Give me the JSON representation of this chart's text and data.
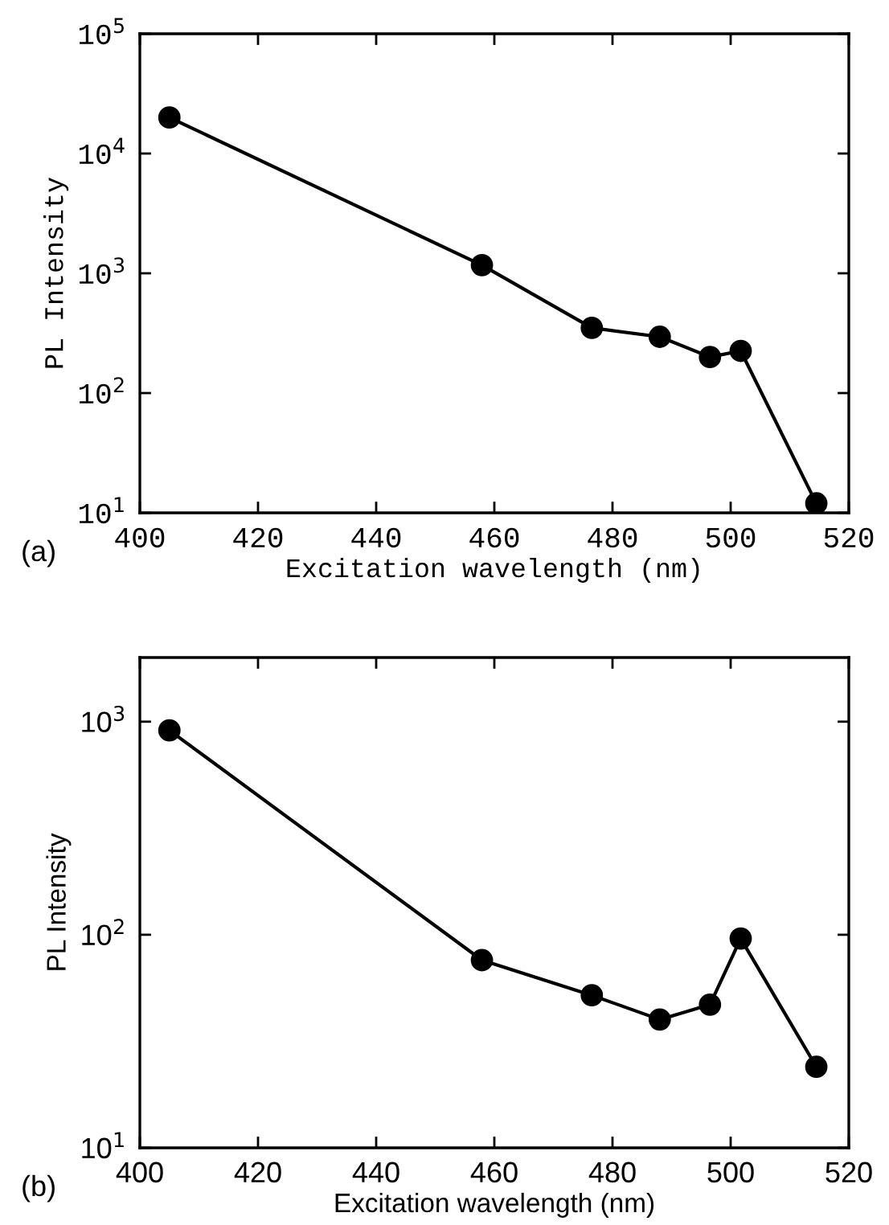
{
  "chart_data": [
    {
      "type": "line",
      "xlabel": "Excitation wavelength (nm)",
      "ylabel": "PL Intensity",
      "annotations": [
        "(a)"
      ],
      "log": "y",
      "marker": "circle",
      "line_style": "solid",
      "grid": false,
      "legend": false,
      "x": [
        405,
        457.9,
        476.5,
        488,
        496.5,
        501.7,
        514.5
      ],
      "series": [
        {
          "color": "#000000",
          "values": [
            20000,
            1170,
            350,
            295,
            200,
            225,
            12
          ]
        }
      ],
      "xlim": [
        400,
        520
      ],
      "xticks": [
        400,
        420,
        440,
        460,
        480,
        500,
        520
      ],
      "ylim": [
        10,
        100000
      ],
      "yticks": [
        {
          "value": 10,
          "label": "10$^{1}$"
        },
        {
          "value": 100,
          "label": "10$^{2}$"
        },
        {
          "value": 1000,
          "label": "10$^{3}$"
        },
        {
          "value": 10000,
          "label": "10$^{4}$"
        },
        {
          "value": 100000,
          "label": "10$^{5}$"
        }
      ]
    },
    {
      "type": "line",
      "xlabel": "Excitation wavelength (nm)",
      "ylabel": "PL Intensity",
      "annotations": [
        "(b)"
      ],
      "log": "y",
      "marker": "circle",
      "line_style": "solid",
      "grid": false,
      "legend": false,
      "x": [
        405,
        457.9,
        476.5,
        488,
        496.5,
        501.7,
        514.5
      ],
      "series": [
        {
          "color": "#000000",
          "values": [
            910,
            76,
            52,
            40,
            47,
            96,
            24
          ]
        }
      ],
      "xlim": [
        400,
        520
      ],
      "xticks": [
        400,
        420,
        440,
        460,
        480,
        500,
        520
      ],
      "ylim": [
        10,
        2000
      ],
      "yticks": [
        {
          "value": 10,
          "label": "10$^{1}$"
        },
        {
          "value": 100,
          "label": "10$^{2}$"
        },
        {
          "value": 1000,
          "label": "10$^{3}$"
        }
      ]
    }
  ]
}
